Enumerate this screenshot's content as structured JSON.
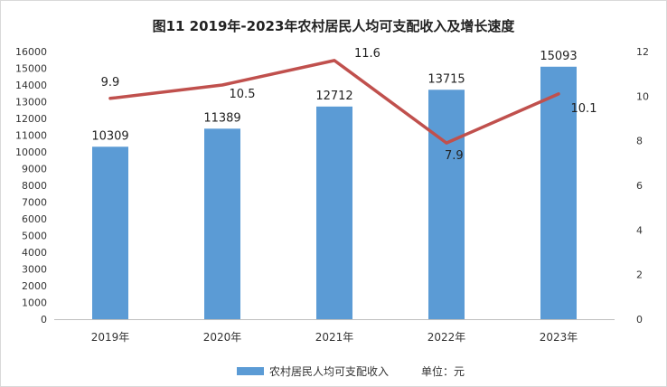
{
  "chart_data": {
    "type": "bar",
    "title": "图11  2019年-2023年农村居民人均可支配收入及增长速度",
    "categories": [
      "2019年",
      "2020年",
      "2021年",
      "2022年",
      "2023年"
    ],
    "series": [
      {
        "name": "农村居民人均可支配收入",
        "type": "bar",
        "axis": "left",
        "color": "#5b9bd5",
        "values": [
          10309,
          11389,
          12712,
          13715,
          15093
        ],
        "labels": [
          "10309",
          "11389",
          "12712",
          "13715",
          "15093"
        ]
      },
      {
        "type": "line",
        "axis": "right",
        "color": "#c0504d",
        "values": [
          9.9,
          10.5,
          11.6,
          7.9,
          10.1
        ],
        "labels": [
          "9.9",
          "10.5",
          "11.6",
          "7.9",
          "10.1"
        ]
      }
    ],
    "y_left": {
      "ylim": [
        0,
        16000
      ],
      "ticks": [
        "0",
        "1000",
        "2000",
        "3000",
        "4000",
        "5000",
        "6000",
        "7000",
        "8000",
        "9000",
        "10000",
        "11000",
        "12000",
        "13000",
        "14000",
        "15000",
        "16000"
      ]
    },
    "y_right": {
      "ylim": [
        0,
        12
      ],
      "ticks": [
        "0",
        "2",
        "4",
        "6",
        "8",
        "10",
        "12"
      ]
    },
    "legend": {
      "position": "bottom",
      "label": "农村居民人均可支配收入",
      "unit_note": "单位：元"
    },
    "grid": false
  }
}
